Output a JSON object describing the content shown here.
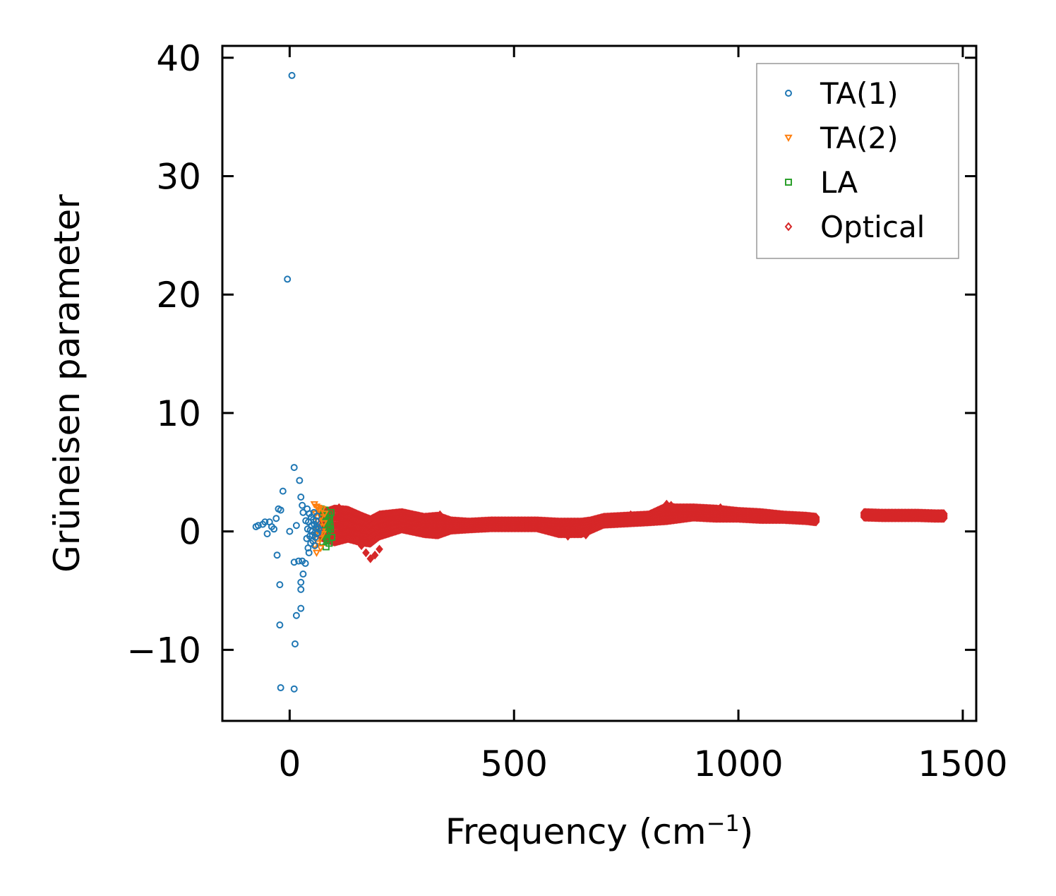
{
  "chart_data": {
    "type": "scatter",
    "title": "",
    "xlabel": "Frequency (cm",
    "xlabel_sup": "−1",
    "xlabel_close": ")",
    "ylabel": "Grüneisen parameter",
    "xlim": [
      -150,
      1530
    ],
    "ylim": [
      -16,
      41
    ],
    "xticks": [
      0,
      500,
      1000,
      1500
    ],
    "xtick_labels": [
      "0",
      "500",
      "1000",
      "1500"
    ],
    "yticks": [
      -10,
      0,
      10,
      20,
      30,
      40
    ],
    "ytick_labels": [
      "−10",
      "0",
      "10",
      "20",
      "30",
      "40"
    ],
    "legend_position": "top-right",
    "series": [
      {
        "name": "TA(1)",
        "marker": "circle",
        "color": "#1f77b4",
        "points": [
          [
            5,
            38.5
          ],
          [
            -5,
            21.3
          ],
          [
            10,
            5.4
          ],
          [
            22,
            4.3
          ],
          [
            -15,
            3.4
          ],
          [
            25,
            2.9
          ],
          [
            28,
            2.2
          ],
          [
            -25,
            1.9
          ],
          [
            -20,
            1.8
          ],
          [
            30,
            1.6
          ],
          [
            -30,
            1.1
          ],
          [
            -45,
            0.8
          ],
          [
            -55,
            0.8
          ],
          [
            -60,
            0.6
          ],
          [
            -70,
            0.5
          ],
          [
            -75,
            0.4
          ],
          [
            -40,
            0.4
          ],
          [
            -35,
            0.2
          ],
          [
            -50,
            -0.2
          ],
          [
            0,
            0.0
          ],
          [
            15,
            0.5
          ],
          [
            -28,
            -2.0
          ],
          [
            10,
            -2.6
          ],
          [
            20,
            -2.5
          ],
          [
            28,
            -2.5
          ],
          [
            35,
            -2.7
          ],
          [
            30,
            -3.6
          ],
          [
            25,
            -4.3
          ],
          [
            -22,
            -4.5
          ],
          [
            25,
            -4.9
          ],
          [
            25,
            -6.5
          ],
          [
            15,
            -7.1
          ],
          [
            -22,
            -7.9
          ],
          [
            12,
            -9.5
          ],
          [
            -20,
            -13.2
          ],
          [
            10,
            -13.3
          ],
          [
            40,
            0.2
          ],
          [
            42,
            0.8
          ],
          [
            45,
            -0.4
          ],
          [
            48,
            1.2
          ],
          [
            50,
            0.0
          ],
          [
            52,
            -0.8
          ],
          [
            55,
            0.6
          ],
          [
            58,
            0.3
          ],
          [
            60,
            -0.2
          ],
          [
            44,
            1.5
          ],
          [
            47,
            -1.0
          ],
          [
            53,
            1.0
          ],
          [
            57,
            -0.5
          ],
          [
            62,
            0.4
          ],
          [
            38,
            -0.6
          ],
          [
            36,
            0.9
          ],
          [
            49,
            0.5
          ],
          [
            51,
            -0.3
          ],
          [
            46,
            0.1
          ],
          [
            59,
            0.9
          ],
          [
            63,
            -0.1
          ],
          [
            41,
            -1.4
          ],
          [
            54,
            1.6
          ],
          [
            39,
            1.9
          ],
          [
            43,
            -1.8
          ],
          [
            56,
            -1.2
          ],
          [
            61,
            1.3
          ],
          [
            65,
            0.2
          ]
        ]
      },
      {
        "name": "TA(2)",
        "marker": "triangle-down",
        "color": "#ff7f0e",
        "points": [
          [
            55,
            2.3
          ],
          [
            60,
            2.1
          ],
          [
            65,
            1.8
          ],
          [
            58,
            1.5
          ],
          [
            62,
            0.9
          ],
          [
            70,
            1.2
          ],
          [
            66,
            0.4
          ],
          [
            72,
            0.0
          ],
          [
            57,
            -0.3
          ],
          [
            68,
            -0.6
          ],
          [
            74,
            -0.2
          ],
          [
            63,
            -1.0
          ],
          [
            60,
            -1.8
          ],
          [
            56,
            -1.2
          ],
          [
            76,
            0.7
          ],
          [
            78,
            1.5
          ],
          [
            64,
            2.0
          ],
          [
            69,
            -1.4
          ],
          [
            73,
            1.9
          ],
          [
            59,
            0.2
          ]
        ]
      },
      {
        "name": "LA",
        "marker": "square",
        "color": "#2ca02c",
        "points": [
          [
            70,
            1.9
          ],
          [
            75,
            1.5
          ],
          [
            80,
            1.2
          ],
          [
            85,
            0.9
          ],
          [
            90,
            0.5
          ],
          [
            72,
            0.1
          ],
          [
            78,
            -0.3
          ],
          [
            83,
            -0.7
          ],
          [
            88,
            -1.0
          ],
          [
            92,
            1.6
          ],
          [
            77,
            0.8
          ],
          [
            86,
            0.3
          ],
          [
            81,
            -1.3
          ],
          [
            74,
            -0.9
          ],
          [
            89,
            1.1
          ],
          [
            94,
            -0.5
          ],
          [
            79,
            1.8
          ],
          [
            84,
            -0.1
          ],
          [
            91,
            0.2
          ],
          [
            87,
            1.4
          ]
        ]
      },
      {
        "name": "Optical",
        "marker": "diamond",
        "color": "#d62728",
        "band": [
          [
            70,
            0.5,
            1.0
          ],
          [
            100,
            0.5,
            1.4
          ],
          [
            130,
            0.6,
            1.2
          ],
          [
            160,
            0.2,
            1.1
          ],
          [
            180,
            0.0,
            1.0
          ],
          [
            200,
            0.5,
            0.9
          ],
          [
            250,
            0.9,
            0.7
          ],
          [
            300,
            0.5,
            0.7
          ],
          [
            330,
            0.5,
            0.8
          ],
          [
            360,
            0.5,
            0.4
          ],
          [
            400,
            0.5,
            0.3
          ],
          [
            450,
            0.6,
            0.3
          ],
          [
            500,
            0.6,
            0.3
          ],
          [
            550,
            0.6,
            0.3
          ],
          [
            600,
            0.3,
            0.5
          ],
          [
            650,
            0.3,
            0.5
          ],
          [
            670,
            0.5,
            0.4
          ],
          [
            700,
            0.9,
            0.3
          ],
          [
            750,
            1.0,
            0.3
          ],
          [
            800,
            1.1,
            0.3
          ],
          [
            840,
            1.5,
            0.6
          ],
          [
            860,
            1.5,
            0.5
          ],
          [
            900,
            1.6,
            0.4
          ],
          [
            950,
            1.5,
            0.4
          ],
          [
            1000,
            1.4,
            0.3
          ],
          [
            1050,
            1.3,
            0.3
          ],
          [
            1100,
            1.2,
            0.2
          ],
          [
            1150,
            1.1,
            0.2
          ],
          [
            1175,
            1.0,
            0.2
          ],
          [
            1280,
            1.4,
            0.2
          ],
          [
            1320,
            1.35,
            0.2
          ],
          [
            1360,
            1.35,
            0.2
          ],
          [
            1400,
            1.35,
            0.2
          ],
          [
            1440,
            1.3,
            0.2
          ],
          [
            1460,
            1.3,
            0.2
          ]
        ],
        "extremes": [
          [
            180,
            -2.3
          ],
          [
            200,
            -1.5
          ],
          [
            170,
            -1.8
          ],
          [
            160,
            -1.2
          ],
          [
            190,
            -2.0
          ],
          [
            150,
            -0.8
          ],
          [
            620,
            -0.4
          ],
          [
            660,
            -0.3
          ],
          [
            840,
            2.3
          ],
          [
            850,
            2.2
          ],
          [
            110,
            2.0
          ],
          [
            125,
            1.8
          ],
          [
            335,
            1.4
          ],
          [
            760,
            1.4
          ],
          [
            960,
            2.0
          ]
        ]
      }
    ]
  }
}
